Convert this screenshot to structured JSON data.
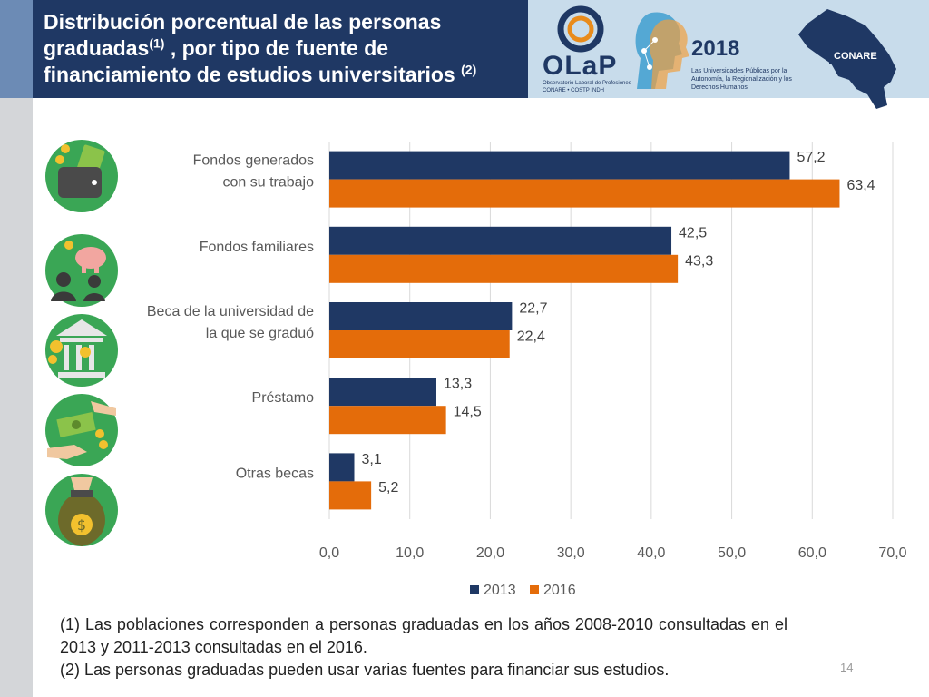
{
  "header": {
    "title_line1": "Distribución porcentual de las personas",
    "title_line2a": "graduadas",
    "title_sup1": "(1)",
    "title_line2b": " , por tipo de fuente de",
    "title_line3": "financiamiento de estudios universitarios ",
    "title_sup2": "(2)"
  },
  "logos": {
    "olap_name": "OLaP",
    "olap_subtitle": "Observatorio Laboral de Profesiones CONARE • COSTP INDH",
    "year": "2018",
    "year_subtitle": "Las Universidades Públicas por la Autonomía, la Regionalización y los Derechos Humanos",
    "conare": "CONARE"
  },
  "icons": [
    "wallet-icon",
    "family-piggy-bank-icon",
    "university-coins-icon",
    "loan-money-icon",
    "money-bag-icon"
  ],
  "chart_data": {
    "type": "bar",
    "orientation": "horizontal",
    "categories": [
      "Fondos generados con su trabajo",
      "Fondos familiares",
      "Beca de la universidad de la que se graduó",
      "Préstamo",
      "Otras becas"
    ],
    "category_lines": [
      [
        "Fondos generados",
        "con su trabajo"
      ],
      [
        "Fondos familiares"
      ],
      [
        "Beca de la universidad de",
        "la que se graduó"
      ],
      [
        "Préstamo"
      ],
      [
        "Otras becas"
      ]
    ],
    "series": [
      {
        "name": "2013",
        "color": "#1f3864",
        "values": [
          57.2,
          42.5,
          22.7,
          13.3,
          3.1
        ],
        "labels": [
          "57,2",
          "42,5",
          "22,7",
          "13,3",
          "3,1"
        ]
      },
      {
        "name": "2016",
        "color": "#e46c0a",
        "values": [
          63.4,
          43.3,
          22.4,
          14.5,
          5.2
        ],
        "labels": [
          "63,4",
          "43,3",
          "22,4",
          "14,5",
          "5,2"
        ]
      }
    ],
    "xlim": [
      0,
      70
    ],
    "xticks": [
      0,
      10,
      20,
      30,
      40,
      50,
      60,
      70
    ],
    "xtick_labels": [
      "0,0",
      "10,0",
      "20,0",
      "30,0",
      "40,0",
      "50,0",
      "60,0",
      "70,0"
    ],
    "grid": true,
    "legend_position": "bottom"
  },
  "footnotes": {
    "note1": "(1) Las poblaciones corresponden a personas graduadas en los años 2008-2010 consultadas en el 2013 y 2011-2013 consultadas en el 2016.",
    "note2": "(2) Las personas graduadas pueden usar varias fuentes para financiar sus estudios."
  },
  "page_number": "14"
}
